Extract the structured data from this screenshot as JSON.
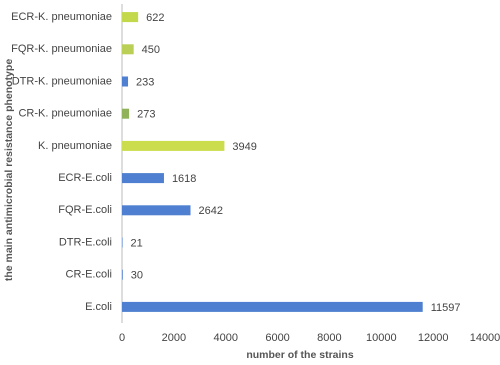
{
  "chart_data": {
    "type": "hbar",
    "x_label": "number of the strains",
    "y_label": "the main antimicrobial  resistance phenotype",
    "categories": [
      "ECR-K. pneumoniae",
      "FQR-K. pneumoniae",
      "DTR-K. pneumoniae",
      "CR-K. pneumoniae",
      "K. pneumoniae",
      "ECR-E.coli",
      "FQR-E.coli",
      "DTR-E.coli",
      "CR-E.coli",
      "E.coli"
    ],
    "values": [
      622,
      450,
      233,
      273,
      3949,
      1618,
      2642,
      21,
      30,
      11597
    ],
    "colors": [
      "#c3d84a",
      "#b9cf55",
      "#4f7fd0",
      "#8fb25a",
      "#cbdc4c",
      "#4f7fd0",
      "#4f7fd0",
      "#4f7fd0",
      "#4f7fd0",
      "#4f7fd0"
    ],
    "xlim": [
      0,
      14000
    ],
    "xticks": [
      0,
      2000,
      4000,
      6000,
      8000,
      10000,
      12000,
      14000
    ]
  }
}
